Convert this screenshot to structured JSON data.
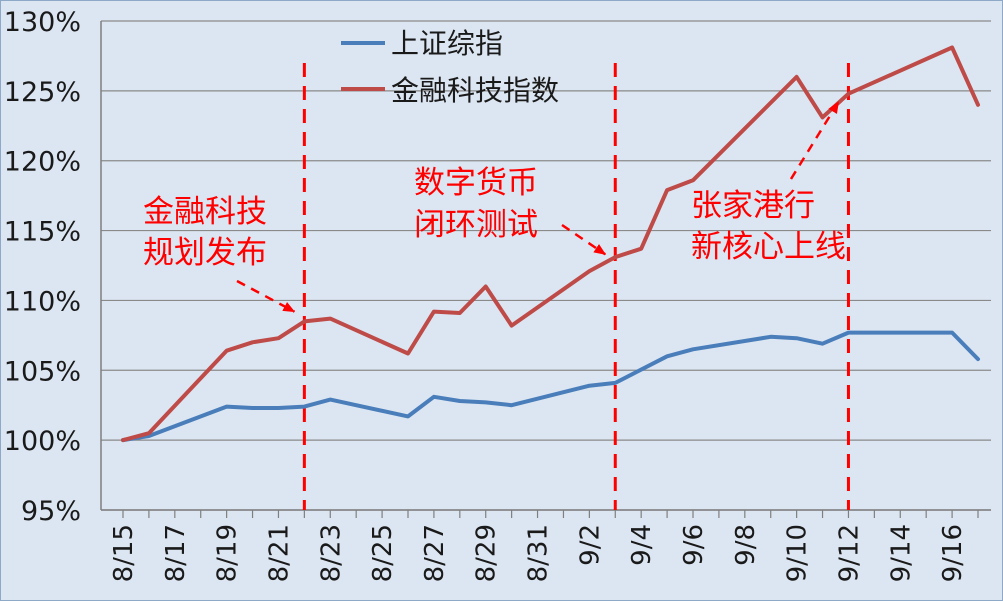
{
  "chart_data": {
    "type": "line",
    "title": "",
    "xlabel": "",
    "ylabel": "",
    "ylim": [
      95,
      130
    ],
    "y_unit": "%",
    "yticks": [
      95,
      100,
      105,
      110,
      115,
      120,
      125,
      130
    ],
    "x_range": [
      "2024-08-15",
      "2024-09-17"
    ],
    "x_ticks": [
      {
        "date": "2024-08-15",
        "label": "8/15"
      },
      {
        "date": "2024-08-17",
        "label": "8/17"
      },
      {
        "date": "2024-08-19",
        "label": "8/19"
      },
      {
        "date": "2024-08-21",
        "label": "8/21"
      },
      {
        "date": "2024-08-23",
        "label": "8/23"
      },
      {
        "date": "2024-08-25",
        "label": "8/25"
      },
      {
        "date": "2024-08-27",
        "label": "8/27"
      },
      {
        "date": "2024-08-29",
        "label": "8/29"
      },
      {
        "date": "2024-08-31",
        "label": "8/31"
      },
      {
        "date": "2024-09-02",
        "label": "9/2"
      },
      {
        "date": "2024-09-04",
        "label": "9/4"
      },
      {
        "date": "2024-09-06",
        "label": "9/6"
      },
      {
        "date": "2024-09-08",
        "label": "9/8"
      },
      {
        "date": "2024-09-10",
        "label": "9/10"
      },
      {
        "date": "2024-09-12",
        "label": "9/12"
      },
      {
        "date": "2024-09-14",
        "label": "9/14"
      },
      {
        "date": "2024-09-16",
        "label": "9/16"
      }
    ],
    "grid": {
      "y": true,
      "x": false
    },
    "legend_position": "top-center",
    "series": [
      {
        "name": "上证综指",
        "color": "#4a7ebb",
        "points": [
          {
            "x": "2024-08-15",
            "y": 100.0
          },
          {
            "x": "2024-08-16",
            "y": 100.3
          },
          {
            "x": "2024-08-19",
            "y": 102.4
          },
          {
            "x": "2024-08-20",
            "y": 102.3
          },
          {
            "x": "2024-08-21",
            "y": 102.3
          },
          {
            "x": "2024-08-22",
            "y": 102.4
          },
          {
            "x": "2024-08-23",
            "y": 102.9
          },
          {
            "x": "2024-08-26",
            "y": 101.7
          },
          {
            "x": "2024-08-27",
            "y": 103.1
          },
          {
            "x": "2024-08-28",
            "y": 102.8
          },
          {
            "x": "2024-08-29",
            "y": 102.7
          },
          {
            "x": "2024-08-30",
            "y": 102.5
          },
          {
            "x": "2024-09-02",
            "y": 103.9
          },
          {
            "x": "2024-09-03",
            "y": 104.1
          },
          {
            "x": "2024-09-05",
            "y": 106.0
          },
          {
            "x": "2024-09-06",
            "y": 106.5
          },
          {
            "x": "2024-09-09",
            "y": 107.4
          },
          {
            "x": "2024-09-10",
            "y": 107.3
          },
          {
            "x": "2024-09-11",
            "y": 106.9
          },
          {
            "x": "2024-09-12",
            "y": 107.7
          },
          {
            "x": "2024-09-16",
            "y": 107.7
          },
          {
            "x": "2024-09-17",
            "y": 105.8
          }
        ]
      },
      {
        "name": "金融科技指数",
        "color": "#be4b48",
        "points": [
          {
            "x": "2024-08-15",
            "y": 100.0
          },
          {
            "x": "2024-08-16",
            "y": 100.5
          },
          {
            "x": "2024-08-19",
            "y": 106.4
          },
          {
            "x": "2024-08-20",
            "y": 107.0
          },
          {
            "x": "2024-08-21",
            "y": 107.3
          },
          {
            "x": "2024-08-22",
            "y": 108.5
          },
          {
            "x": "2024-08-23",
            "y": 108.7
          },
          {
            "x": "2024-08-26",
            "y": 106.2
          },
          {
            "x": "2024-08-27",
            "y": 109.2
          },
          {
            "x": "2024-08-28",
            "y": 109.1
          },
          {
            "x": "2024-08-29",
            "y": 111.0
          },
          {
            "x": "2024-08-30",
            "y": 108.2
          },
          {
            "x": "2024-09-02",
            "y": 112.1
          },
          {
            "x": "2024-09-03",
            "y": 113.1
          },
          {
            "x": "2024-09-04",
            "y": 113.7
          },
          {
            "x": "2024-09-05",
            "y": 117.9
          },
          {
            "x": "2024-09-06",
            "y": 118.6
          },
          {
            "x": "2024-09-10",
            "y": 126.0
          },
          {
            "x": "2024-09-11",
            "y": 123.1
          },
          {
            "x": "2024-09-12",
            "y": 124.8
          },
          {
            "x": "2024-09-16",
            "y": 128.1
          },
          {
            "x": "2024-09-17",
            "y": 124.0
          }
        ]
      }
    ],
    "event_lines": [
      {
        "date": "2024-08-22",
        "color": "#ff0000"
      },
      {
        "date": "2024-09-03",
        "color": "#ff0000"
      },
      {
        "date": "2024-09-12",
        "color": "#ff0000"
      }
    ],
    "annotations": [
      {
        "lines": [
          "金融科技",
          "规划发布"
        ],
        "color": "#ff0000",
        "arrow_to": {
          "date": "2024-08-22",
          "y": 109.2
        }
      },
      {
        "lines": [
          "数字货币",
          "闭环测试"
        ],
        "color": "#ff0000",
        "arrow_to": {
          "date": "2024-09-03",
          "y": 113.3
        }
      },
      {
        "lines": [
          "张家港行",
          "新核心上线"
        ],
        "color": "#ff0000",
        "arrow_to": {
          "date": "2024-09-12",
          "y": 124.2
        }
      }
    ]
  }
}
